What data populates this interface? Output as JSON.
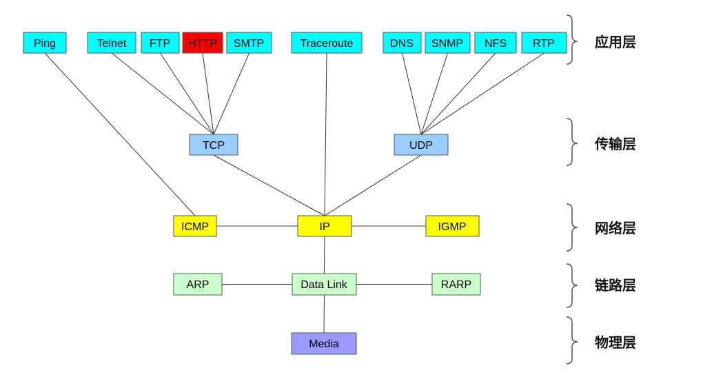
{
  "colors": {
    "cyan": "#00ffff",
    "red": "#ff0000",
    "lightblue": "#99ccff",
    "yellow": "#ffff00",
    "lightgreen": "#ccffcc",
    "purple": "#9999ff",
    "line": "#333333"
  },
  "nodes": {
    "ping": {
      "label": "Ping",
      "color": "cyan"
    },
    "telnet": {
      "label": "Telnet",
      "color": "cyan"
    },
    "ftp": {
      "label": "FTP",
      "color": "cyan"
    },
    "http": {
      "label": "HTTP",
      "color": "red"
    },
    "smtp": {
      "label": "SMTP",
      "color": "cyan"
    },
    "traceroute": {
      "label": "Traceroute",
      "color": "cyan"
    },
    "dns": {
      "label": "DNS",
      "color": "cyan"
    },
    "snmp": {
      "label": "SNMP",
      "color": "cyan"
    },
    "nfs": {
      "label": "NFS",
      "color": "cyan"
    },
    "rtp": {
      "label": "RTP",
      "color": "cyan"
    },
    "tcp": {
      "label": "TCP",
      "color": "lightblue"
    },
    "udp": {
      "label": "UDP",
      "color": "lightblue"
    },
    "icmp": {
      "label": "ICMP",
      "color": "yellow"
    },
    "ip": {
      "label": "IP",
      "color": "yellow"
    },
    "igmp": {
      "label": "IGMP",
      "color": "yellow"
    },
    "arp": {
      "label": "ARP",
      "color": "lightgreen"
    },
    "datalink": {
      "label": "Data Link",
      "color": "lightgreen"
    },
    "rarp": {
      "label": "RARP",
      "color": "lightgreen"
    },
    "media": {
      "label": "Media",
      "color": "purple"
    }
  },
  "edges": [
    [
      "ping",
      "icmp"
    ],
    [
      "telnet",
      "tcp"
    ],
    [
      "ftp",
      "tcp"
    ],
    [
      "http",
      "tcp"
    ],
    [
      "smtp",
      "tcp"
    ],
    [
      "traceroute",
      "ip"
    ],
    [
      "dns",
      "udp"
    ],
    [
      "snmp",
      "udp"
    ],
    [
      "nfs",
      "udp"
    ],
    [
      "rtp",
      "udp"
    ],
    [
      "tcp",
      "ip"
    ],
    [
      "udp",
      "ip"
    ],
    [
      "icmp",
      "ip"
    ],
    [
      "ip",
      "igmp"
    ],
    [
      "ip",
      "datalink"
    ],
    [
      "arp",
      "datalink"
    ],
    [
      "datalink",
      "rarp"
    ],
    [
      "datalink",
      "media"
    ]
  ],
  "layers": {
    "application": "应用层",
    "transport": "传输层",
    "network": "网络层",
    "link": "链路层",
    "physical": "物理层"
  }
}
